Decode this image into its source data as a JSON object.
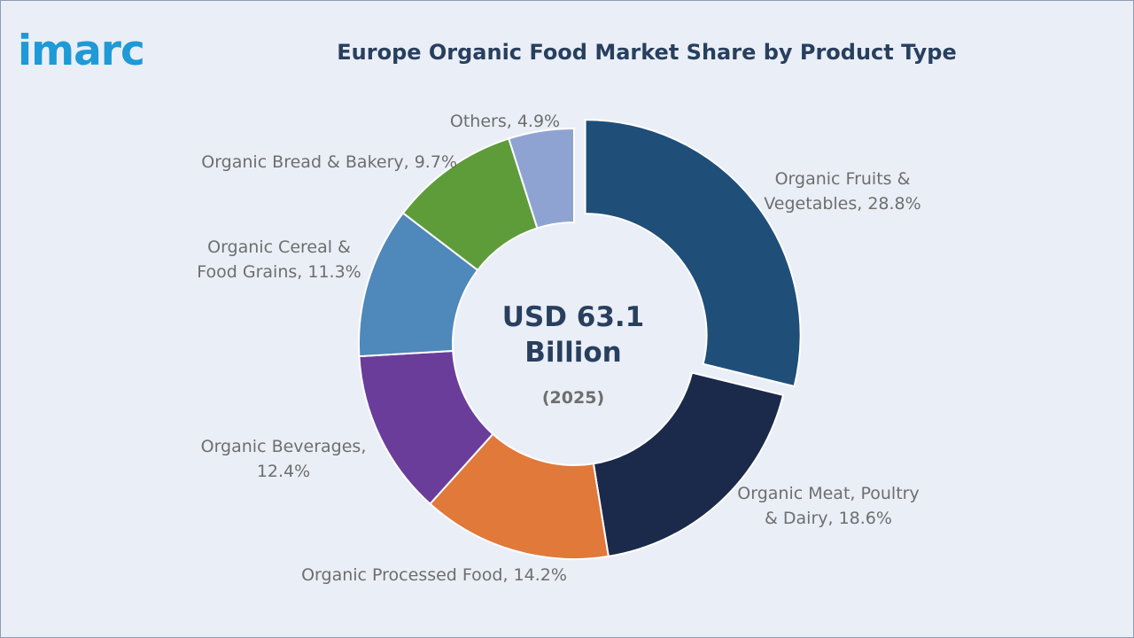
{
  "brand": {
    "logo_text": "imarc",
    "color": "#1e9ad6"
  },
  "title": "Europe Organic Food Market Share by Product Type",
  "center": {
    "value_line1": "USD 63.1",
    "value_line2": "Billion",
    "year": "(2025)"
  },
  "labels": {
    "fruits_veg_1": "Organic Fruits &",
    "fruits_veg_2": "Vegetables, 28.8%",
    "meat_1": "Organic Meat, Poultry",
    "meat_2": "& Dairy, 18.6%",
    "processed": "Organic Processed Food, 14.2%",
    "beverages_1": "Organic Beverages,",
    "beverages_2": "12.4%",
    "cereal_1": "Organic Cereal &",
    "cereal_2": "Food Grains, 11.3%",
    "bread": "Organic Bread & Bakery, 9.7%",
    "others": "Others, 4.9%"
  },
  "chart_data": {
    "type": "pie",
    "subtype": "donut",
    "title": "Europe Organic Food Market Share by Product Type",
    "unit": "%",
    "exploded_slice": "Organic Fruits & Vegetables",
    "slices": [
      {
        "label": "Organic Fruits & Vegetables",
        "value": 28.8,
        "color": "#1f4e79"
      },
      {
        "label": "Organic Meat, Poultry & Dairy",
        "value": 18.6,
        "color": "#1b2a4a"
      },
      {
        "label": "Organic Processed Food",
        "value": 14.2,
        "color": "#e0793a"
      },
      {
        "label": "Organic Beverages",
        "value": 12.4,
        "color": "#6a3d9a"
      },
      {
        "label": "Organic Cereal & Food Grains",
        "value": 11.3,
        "color": "#4f88bb"
      },
      {
        "label": "Organic Bread & Bakery",
        "value": 9.7,
        "color": "#5e9c3a"
      },
      {
        "label": "Others",
        "value": 4.9,
        "color": "#8fa3d3"
      }
    ]
  }
}
